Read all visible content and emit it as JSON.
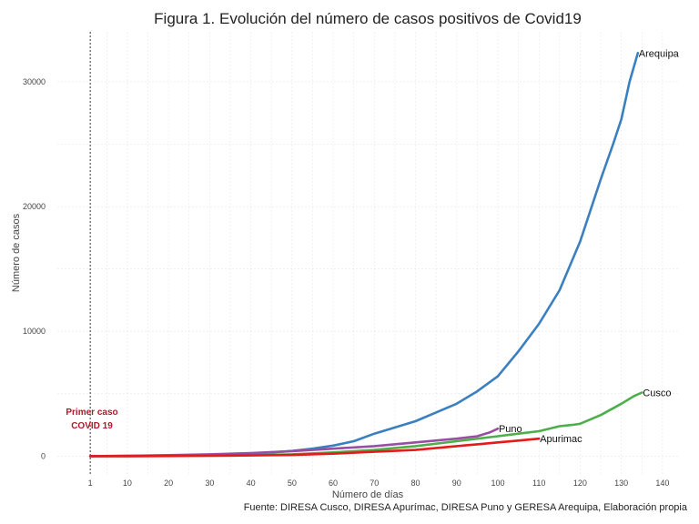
{
  "chart_data": {
    "type": "line",
    "title": "Figura 1. Evolución del número de casos positivos de Covid19",
    "xlabel": "Número de días",
    "ylabel": "Número de casos",
    "source": "Fuente: DIRESA Cusco, DIRESA Apurímac, DIRESA Puno y GERESA Arequipa, Elaboración propia",
    "xlim": [
      -7,
      144
    ],
    "ylim": [
      -1500,
      34000
    ],
    "x_ticks": [
      1,
      10,
      20,
      30,
      40,
      50,
      60,
      70,
      80,
      90,
      100,
      110,
      120,
      130,
      140
    ],
    "y_ticks": [
      0,
      10000,
      20000,
      30000
    ],
    "grid": true,
    "legend": "none",
    "reference_line": {
      "x": 1,
      "style": "dotted"
    },
    "annotation": {
      "line1": "Primer caso",
      "line2": "COVID 19",
      "color": "#b2182b"
    },
    "series": [
      {
        "name": "Arequipa",
        "color": "#3a7fbf",
        "x": [
          1,
          10,
          20,
          30,
          40,
          45,
          50,
          55,
          60,
          65,
          70,
          75,
          80,
          85,
          90,
          95,
          100,
          105,
          110,
          115,
          120,
          125,
          128,
          130,
          132,
          134
        ],
        "y": [
          0,
          20,
          50,
          110,
          200,
          300,
          420,
          600,
          850,
          1200,
          1800,
          2300,
          2800,
          3500,
          4200,
          5200,
          6400,
          8400,
          10600,
          13300,
          17200,
          22200,
          25000,
          27000,
          30000,
          32300
        ]
      },
      {
        "name": "Cusco",
        "color": "#4dae4a",
        "x": [
          1,
          10,
          20,
          30,
          40,
          50,
          60,
          70,
          80,
          90,
          100,
          105,
          110,
          115,
          118,
          120,
          125,
          130,
          133,
          135
        ],
        "y": [
          0,
          5,
          20,
          40,
          80,
          150,
          300,
          500,
          800,
          1200,
          1600,
          1800,
          2000,
          2400,
          2500,
          2600,
          3300,
          4200,
          4800,
          5100
        ]
      },
      {
        "name": "Puno",
        "color": "#984ea3",
        "x": [
          1,
          10,
          20,
          30,
          40,
          50,
          60,
          70,
          80,
          90,
          95,
          98,
          100
        ],
        "y": [
          0,
          30,
          80,
          150,
          250,
          400,
          600,
          800,
          1100,
          1400,
          1600,
          1900,
          2200
        ]
      },
      {
        "name": "Apurimac",
        "color": "#e41a1c",
        "x": [
          1,
          10,
          20,
          30,
          40,
          50,
          60,
          70,
          80,
          90,
          95,
          100,
          105,
          110
        ],
        "y": [
          0,
          5,
          10,
          30,
          60,
          100,
          200,
          350,
          500,
          800,
          950,
          1100,
          1250,
          1400
        ]
      }
    ]
  }
}
